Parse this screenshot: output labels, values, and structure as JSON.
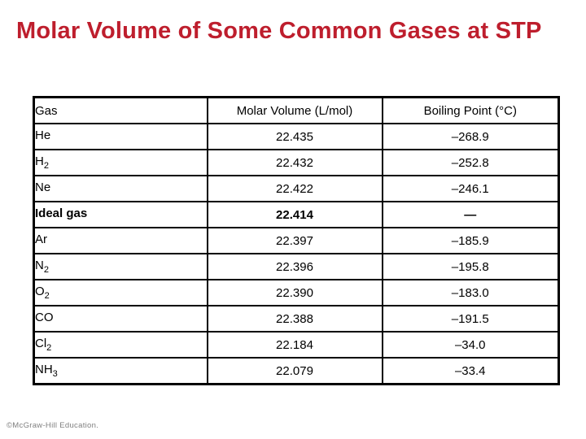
{
  "slide": {
    "title": "Molar Volume of Some Common Gases at STP",
    "title_color": "#BE1E2D",
    "background_color": "#ffffff",
    "footer_credit": "©McGraw-Hill Education."
  },
  "table": {
    "headers": [
      "Gas",
      "Molar Volume (L/mol)",
      "Boiling Point (°C)"
    ],
    "border_color": "#000000",
    "rows": [
      {
        "gas_base": "He",
        "gas_sub": "",
        "molar_volume": "22.435",
        "boiling_point": "–268.9"
      },
      {
        "gas_base": "H",
        "gas_sub": "2",
        "molar_volume": "22.432",
        "boiling_point": "–252.8"
      },
      {
        "gas_base": "Ne",
        "gas_sub": "",
        "molar_volume": "22.422",
        "boiling_point": "–246.1"
      },
      {
        "gas_base": "Ideal gas",
        "gas_sub": "",
        "molar_volume": "22.414",
        "boiling_point": "—"
      },
      {
        "gas_base": "Ar",
        "gas_sub": "",
        "molar_volume": "22.397",
        "boiling_point": "–185.9"
      },
      {
        "gas_base": "N",
        "gas_sub": "2",
        "molar_volume": "22.396",
        "boiling_point": "–195.8"
      },
      {
        "gas_base": "O",
        "gas_sub": "2",
        "molar_volume": "22.390",
        "boiling_point": "–183.0"
      },
      {
        "gas_base": "CO",
        "gas_sub": "",
        "molar_volume": "22.388",
        "boiling_point": "–191.5"
      },
      {
        "gas_base": "Cl",
        "gas_sub": "2",
        "molar_volume": "22.184",
        "boiling_point": "–34.0"
      },
      {
        "gas_base": "NH",
        "gas_sub": "3",
        "molar_volume": "22.079",
        "boiling_point": "–33.4"
      }
    ]
  }
}
